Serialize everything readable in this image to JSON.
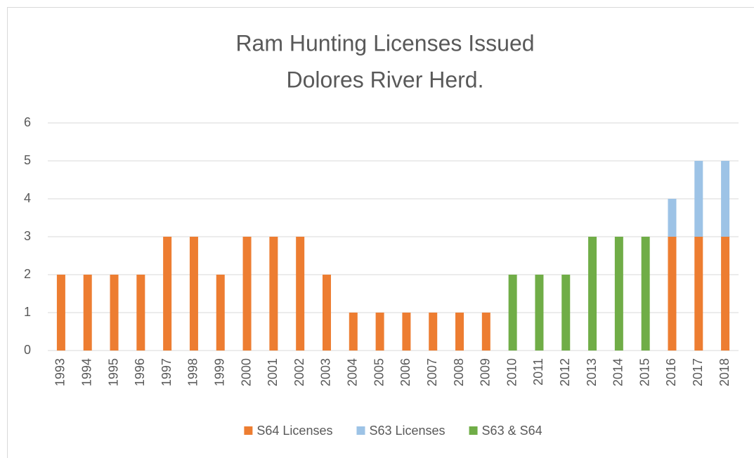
{
  "chart_data": {
    "type": "stacked_bar",
    "title": "Ram Hunting Licenses Issued",
    "subtitle": "Dolores River Herd.",
    "categories": [
      "1993",
      "1994",
      "1995",
      "1996",
      "1997",
      "1998",
      "1999",
      "2000",
      "2001",
      "2002",
      "2003",
      "2004",
      "2005",
      "2006",
      "2007",
      "2008",
      "2009",
      "2010",
      "2011",
      "2012",
      "2013",
      "2014",
      "2015",
      "2016",
      "2017",
      "2018"
    ],
    "series": [
      {
        "name": "S64 Licenses",
        "color": "#ed7d31",
        "values": [
          2,
          2,
          2,
          2,
          3,
          3,
          2,
          3,
          3,
          3,
          2,
          1,
          1,
          1,
          1,
          1,
          1,
          0,
          0,
          0,
          0,
          0,
          0,
          3,
          3,
          3
        ]
      },
      {
        "name": "S63 Licenses",
        "color": "#9dc3e6",
        "values": [
          0,
          0,
          0,
          0,
          0,
          0,
          0,
          0,
          0,
          0,
          0,
          0,
          0,
          0,
          0,
          0,
          0,
          0,
          0,
          0,
          0,
          0,
          0,
          1,
          2,
          2
        ]
      },
      {
        "name": "S63 & S64",
        "color": "#70ad47",
        "values": [
          0,
          0,
          0,
          0,
          0,
          0,
          0,
          0,
          0,
          0,
          0,
          0,
          0,
          0,
          0,
          0,
          0,
          2,
          2,
          2,
          3,
          3,
          3,
          0,
          0,
          0
        ]
      }
    ],
    "ylim": [
      0,
      6
    ],
    "yticks": [
      0,
      1,
      2,
      3,
      4,
      5,
      6
    ],
    "grid": true,
    "legend": "bottom"
  }
}
